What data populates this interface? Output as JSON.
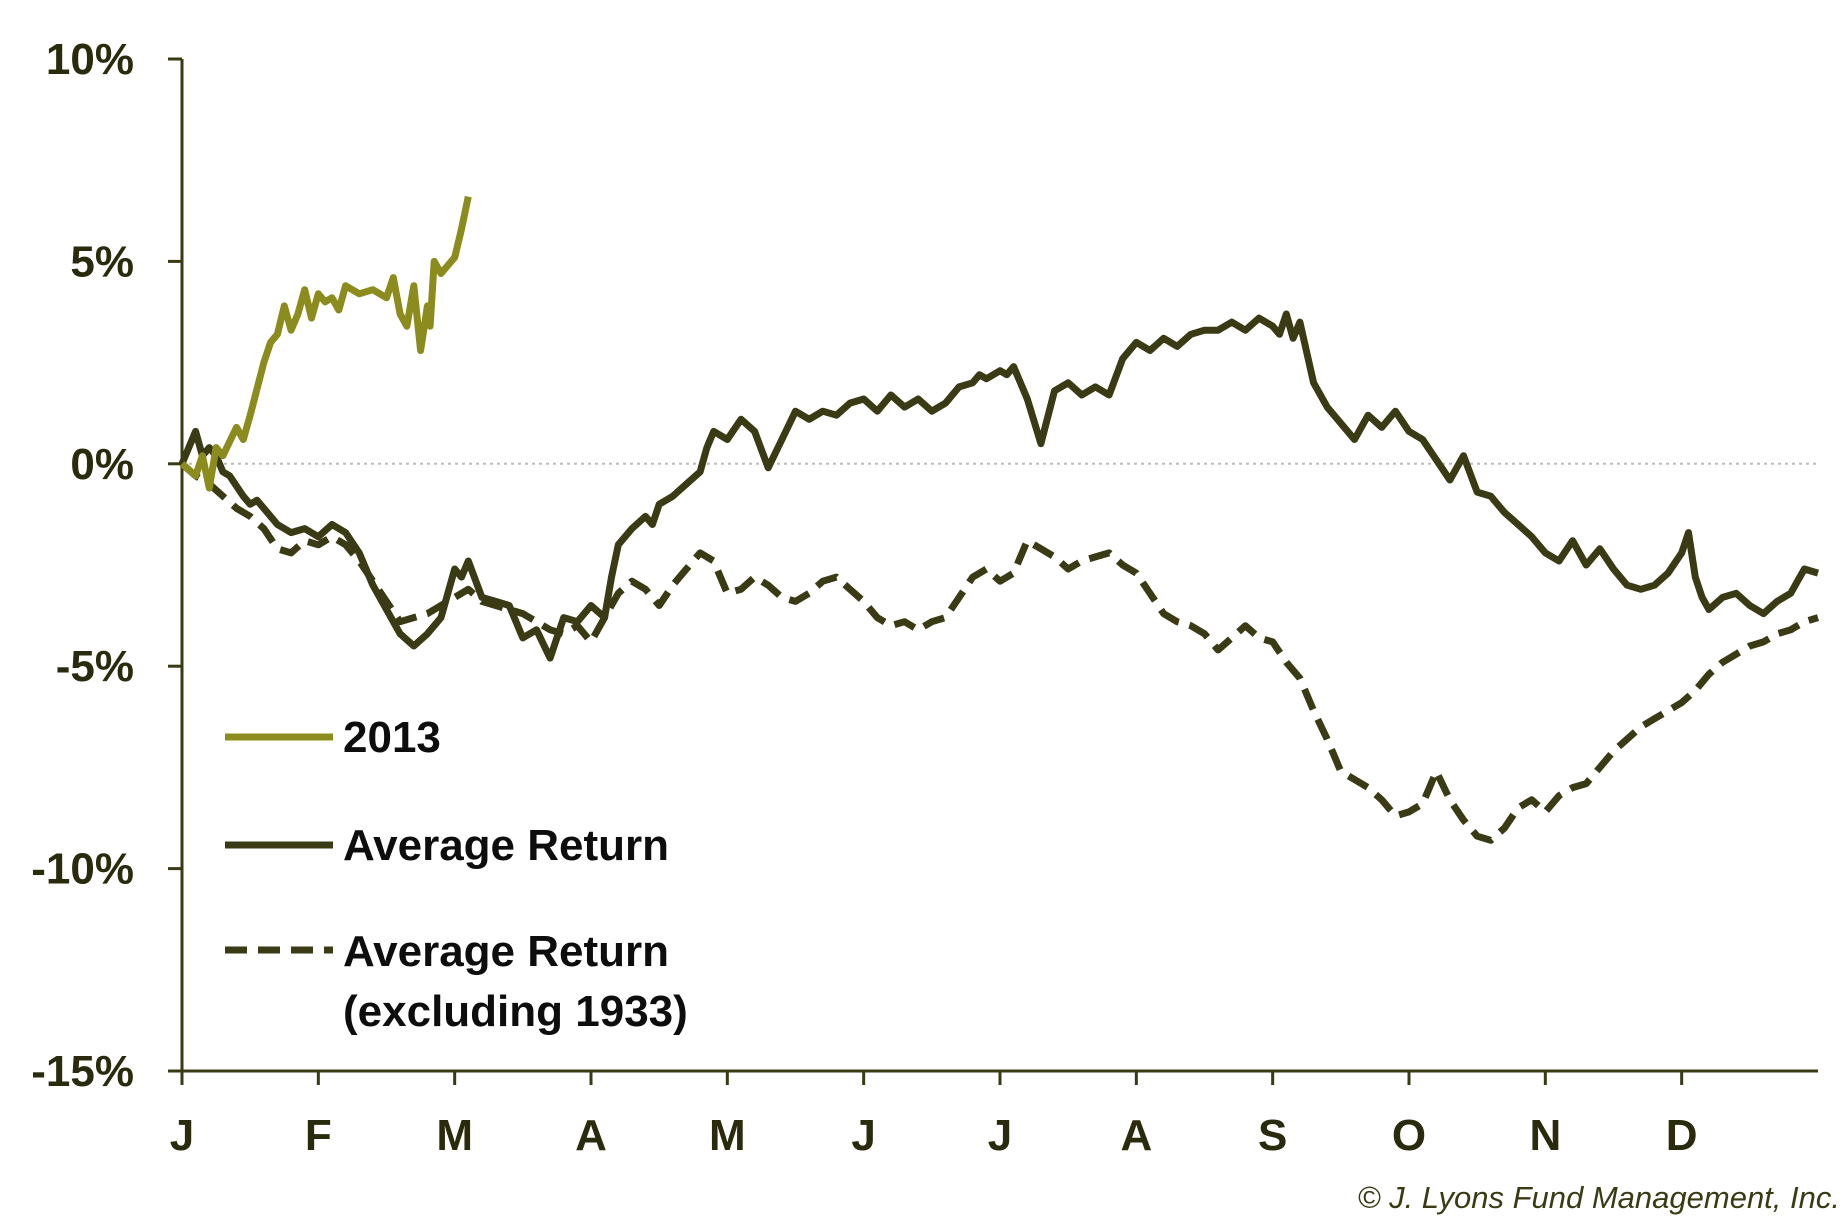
{
  "chart_data": {
    "type": "line",
    "y_tick_labels": [
      "10%",
      "5%",
      "0%",
      "-5%",
      "-10%",
      "-15%"
    ],
    "y_ticks": [
      10,
      5,
      0,
      -5,
      -10,
      -15
    ],
    "ylim": [
      -15,
      10
    ],
    "x_tick_labels": [
      "J",
      "F",
      "M",
      "A",
      "M",
      "J",
      "J",
      "A",
      "S",
      "O",
      "N",
      "D"
    ],
    "xlim": [
      0,
      12
    ],
    "zero_line": true,
    "legend_position": "bottom-left",
    "copyright": "© J. Lyons Fund Management, Inc.",
    "colors": {
      "series_2013": "#8b8b1e",
      "series_avg": "#3a3a14",
      "axis": "#3a3a14",
      "zero_line": "#bbbbbb"
    },
    "series": [
      {
        "name": "2013",
        "style": "solid",
        "color": "#8b8b1e",
        "x": [
          0,
          0.1,
          0.15,
          0.2,
          0.25,
          0.3,
          0.4,
          0.45,
          0.5,
          0.6,
          0.65,
          0.7,
          0.75,
          0.8,
          0.85,
          0.9,
          0.95,
          1.0,
          1.05,
          1.1,
          1.15,
          1.2,
          1.3,
          1.4,
          1.5,
          1.55,
          1.6,
          1.65,
          1.7,
          1.75,
          1.8,
          1.82,
          1.85,
          1.9,
          1.95,
          2.0,
          2.05,
          2.1
        ],
        "y": [
          0,
          -0.3,
          0.2,
          -0.6,
          0.4,
          0.2,
          0.9,
          0.6,
          1.2,
          2.5,
          3.0,
          3.2,
          3.9,
          3.3,
          3.7,
          4.3,
          3.6,
          4.2,
          4.0,
          4.1,
          3.8,
          4.4,
          4.2,
          4.3,
          4.1,
          4.6,
          3.7,
          3.4,
          4.4,
          2.8,
          3.9,
          3.4,
          5.0,
          4.7,
          4.9,
          5.1,
          5.8,
          6.6
        ]
      },
      {
        "name": "Average Return",
        "style": "solid",
        "color": "#3a3a14",
        "x": [
          0,
          0.1,
          0.15,
          0.2,
          0.25,
          0.3,
          0.35,
          0.45,
          0.5,
          0.55,
          0.65,
          0.7,
          0.8,
          0.9,
          1.0,
          1.1,
          1.2,
          1.3,
          1.4,
          1.5,
          1.6,
          1.7,
          1.8,
          1.9,
          2.0,
          2.05,
          2.1,
          2.2,
          2.3,
          2.4,
          2.5,
          2.6,
          2.7,
          2.8,
          2.9,
          3.0,
          3.1,
          3.15,
          3.2,
          3.3,
          3.4,
          3.45,
          3.5,
          3.6,
          3.7,
          3.8,
          3.85,
          3.9,
          4.0,
          4.1,
          4.2,
          4.3,
          4.4,
          4.5,
          4.6,
          4.7,
          4.8,
          4.9,
          5.0,
          5.1,
          5.2,
          5.3,
          5.4,
          5.5,
          5.6,
          5.7,
          5.8,
          5.85,
          5.9,
          6.0,
          6.05,
          6.1,
          6.2,
          6.3,
          6.4,
          6.5,
          6.6,
          6.7,
          6.8,
          6.9,
          7.0,
          7.1,
          7.2,
          7.3,
          7.4,
          7.5,
          7.6,
          7.7,
          7.8,
          7.9,
          8.0,
          8.05,
          8.1,
          8.15,
          8.2,
          8.3,
          8.4,
          8.5,
          8.6,
          8.7,
          8.8,
          8.9,
          9.0,
          9.1,
          9.2,
          9.3,
          9.4,
          9.5,
          9.6,
          9.7,
          9.8,
          9.9,
          10.0,
          10.1,
          10.2,
          10.3,
          10.4,
          10.5,
          10.6,
          10.7,
          10.8,
          10.9,
          11.0,
          11.05,
          11.1,
          11.15,
          11.2,
          11.3,
          11.4,
          11.5,
          11.6,
          11.7,
          11.8,
          11.85,
          11.9,
          12.0
        ],
        "y": [
          0,
          0.8,
          0.2,
          0.4,
          0.2,
          -0.2,
          -0.3,
          -0.8,
          -1.0,
          -0.9,
          -1.3,
          -1.5,
          -1.7,
          -1.6,
          -1.8,
          -1.5,
          -1.7,
          -2.2,
          -3.0,
          -3.6,
          -4.2,
          -4.5,
          -4.2,
          -3.8,
          -2.6,
          -2.8,
          -2.4,
          -3.3,
          -3.4,
          -3.5,
          -4.3,
          -4.1,
          -4.8,
          -3.8,
          -3.9,
          -3.5,
          -3.8,
          -2.8,
          -2.0,
          -1.6,
          -1.3,
          -1.5,
          -1.0,
          -0.8,
          -0.5,
          -0.2,
          0.4,
          0.8,
          0.6,
          1.1,
          0.8,
          -0.1,
          0.6,
          1.3,
          1.1,
          1.3,
          1.2,
          1.5,
          1.6,
          1.3,
          1.7,
          1.4,
          1.6,
          1.3,
          1.5,
          1.9,
          2.0,
          2.2,
          2.1,
          2.3,
          2.2,
          2.4,
          1.6,
          0.5,
          1.8,
          2.0,
          1.7,
          1.9,
          1.7,
          2.6,
          3.0,
          2.8,
          3.1,
          2.9,
          3.2,
          3.3,
          3.3,
          3.5,
          3.3,
          3.6,
          3.4,
          3.2,
          3.7,
          3.1,
          3.5,
          2.0,
          1.4,
          1.0,
          0.6,
          1.2,
          0.9,
          1.3,
          0.8,
          0.6,
          0.1,
          -0.4,
          0.2,
          -0.7,
          -0.8,
          -1.2,
          -1.5,
          -1.8,
          -2.2,
          -2.4,
          -1.9,
          -2.5,
          -2.1,
          -2.6,
          -3.0,
          -3.1,
          -3.0,
          -2.7,
          -2.2,
          -1.7,
          -2.8,
          -3.3,
          -3.6,
          -3.3,
          -3.2,
          -3.5,
          -3.7,
          -3.4,
          -3.2,
          -2.9,
          -2.6,
          -2.7
        ]
      },
      {
        "name": "Average Return (excluding 1933)",
        "style": "dashed",
        "color": "#3a3a14",
        "x": [
          0,
          0.1,
          0.2,
          0.3,
          0.4,
          0.5,
          0.6,
          0.7,
          0.8,
          0.9,
          1.0,
          1.1,
          1.2,
          1.3,
          1.4,
          1.5,
          1.6,
          1.7,
          1.8,
          1.9,
          2.0,
          2.1,
          2.2,
          2.3,
          2.4,
          2.5,
          2.6,
          2.7,
          2.8,
          2.9,
          3.0,
          3.1,
          3.2,
          3.3,
          3.4,
          3.5,
          3.6,
          3.7,
          3.8,
          3.9,
          4.0,
          4.1,
          4.2,
          4.3,
          4.4,
          4.5,
          4.6,
          4.7,
          4.8,
          4.9,
          5.0,
          5.1,
          5.2,
          5.3,
          5.4,
          5.5,
          5.6,
          5.7,
          5.8,
          5.9,
          6.0,
          6.1,
          6.2,
          6.3,
          6.4,
          6.5,
          6.6,
          6.7,
          6.8,
          6.9,
          7.0,
          7.1,
          7.2,
          7.3,
          7.4,
          7.5,
          7.6,
          7.7,
          7.8,
          7.9,
          8.0,
          8.1,
          8.2,
          8.3,
          8.4,
          8.5,
          8.6,
          8.7,
          8.8,
          8.9,
          9.0,
          9.1,
          9.2,
          9.3,
          9.4,
          9.5,
          9.6,
          9.7,
          9.8,
          9.9,
          10.0,
          10.1,
          10.2,
          10.3,
          10.4,
          10.5,
          10.6,
          10.7,
          10.8,
          10.9,
          11.0,
          11.1,
          11.2,
          11.3,
          11.4,
          11.5,
          11.6,
          11.7,
          11.8,
          11.9,
          12.0
        ],
        "y": [
          0,
          -0.3,
          -0.5,
          -0.8,
          -1.1,
          -1.3,
          -1.6,
          -2.1,
          -2.2,
          -1.9,
          -2.0,
          -1.8,
          -2.0,
          -2.4,
          -2.9,
          -3.4,
          -3.9,
          -3.8,
          -3.7,
          -3.5,
          -3.3,
          -3.1,
          -3.4,
          -3.5,
          -3.6,
          -3.7,
          -3.9,
          -4.1,
          -4.2,
          -4.0,
          -4.4,
          -3.8,
          -3.2,
          -2.9,
          -3.1,
          -3.5,
          -3.0,
          -2.6,
          -2.2,
          -2.4,
          -3.2,
          -3.1,
          -2.8,
          -3.0,
          -3.3,
          -3.4,
          -3.2,
          -2.9,
          -2.8,
          -3.1,
          -3.4,
          -3.8,
          -4.0,
          -3.9,
          -4.1,
          -3.9,
          -3.8,
          -3.3,
          -2.8,
          -2.6,
          -2.9,
          -2.7,
          -1.9,
          -2.1,
          -2.3,
          -2.6,
          -2.4,
          -2.3,
          -2.2,
          -2.5,
          -2.7,
          -3.2,
          -3.7,
          -3.9,
          -4.0,
          -4.2,
          -4.6,
          -4.3,
          -4.0,
          -4.3,
          -4.4,
          -4.9,
          -5.3,
          -6.1,
          -6.8,
          -7.6,
          -7.8,
          -8.0,
          -8.3,
          -8.7,
          -8.6,
          -8.4,
          -7.6,
          -8.3,
          -8.8,
          -9.2,
          -9.3,
          -9.0,
          -8.5,
          -8.3,
          -8.6,
          -8.2,
          -8.0,
          -7.9,
          -7.5,
          -7.1,
          -6.8,
          -6.5,
          -6.3,
          -6.1,
          -5.9,
          -5.6,
          -5.2,
          -4.9,
          -4.7,
          -4.5,
          -4.4,
          -4.2,
          -4.1,
          -3.9,
          -3.8
        ]
      }
    ],
    "legend": [
      {
        "label": "2013",
        "style": "solid",
        "color": "#8b8b1e"
      },
      {
        "label": "Average Return",
        "style": "solid",
        "color": "#3a3a14"
      },
      {
        "label_lines": [
          "Average Return",
          "(excluding 1933)"
        ],
        "style": "dashed",
        "color": "#3a3a14"
      }
    ]
  }
}
